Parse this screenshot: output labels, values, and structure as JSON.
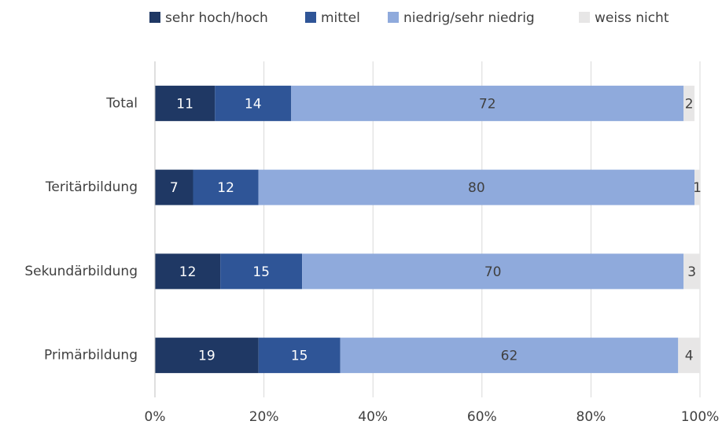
{
  "chart_data": {
    "type": "stacked_barh",
    "categories": [
      "Total",
      "Teritärbildung",
      "Sekundärbildung",
      "Primärbildung"
    ],
    "series": [
      {
        "name": "sehr hoch/hoch",
        "color": "#1f3864",
        "values": [
          11,
          7,
          12,
          19
        ]
      },
      {
        "name": "mittel",
        "color": "#2f5597",
        "values": [
          14,
          12,
          15,
          15
        ]
      },
      {
        "name": "niedrig/sehr niedrig",
        "color": "#8faadc",
        "values": [
          72,
          80,
          70,
          62
        ]
      },
      {
        "name": "weiss nicht",
        "color": "#e7e6e6",
        "values": [
          2,
          1,
          3,
          4
        ]
      }
    ],
    "xlim": [
      0,
      100
    ],
    "xticks": [
      {
        "value": 0,
        "label": "0%"
      },
      {
        "value": 20,
        "label": "20%"
      },
      {
        "value": 40,
        "label": "40%"
      },
      {
        "value": 60,
        "label": "60%"
      },
      {
        "value": 80,
        "label": "80%"
      },
      {
        "value": 100,
        "label": "100%"
      }
    ],
    "grid": true,
    "legend": "top"
  }
}
